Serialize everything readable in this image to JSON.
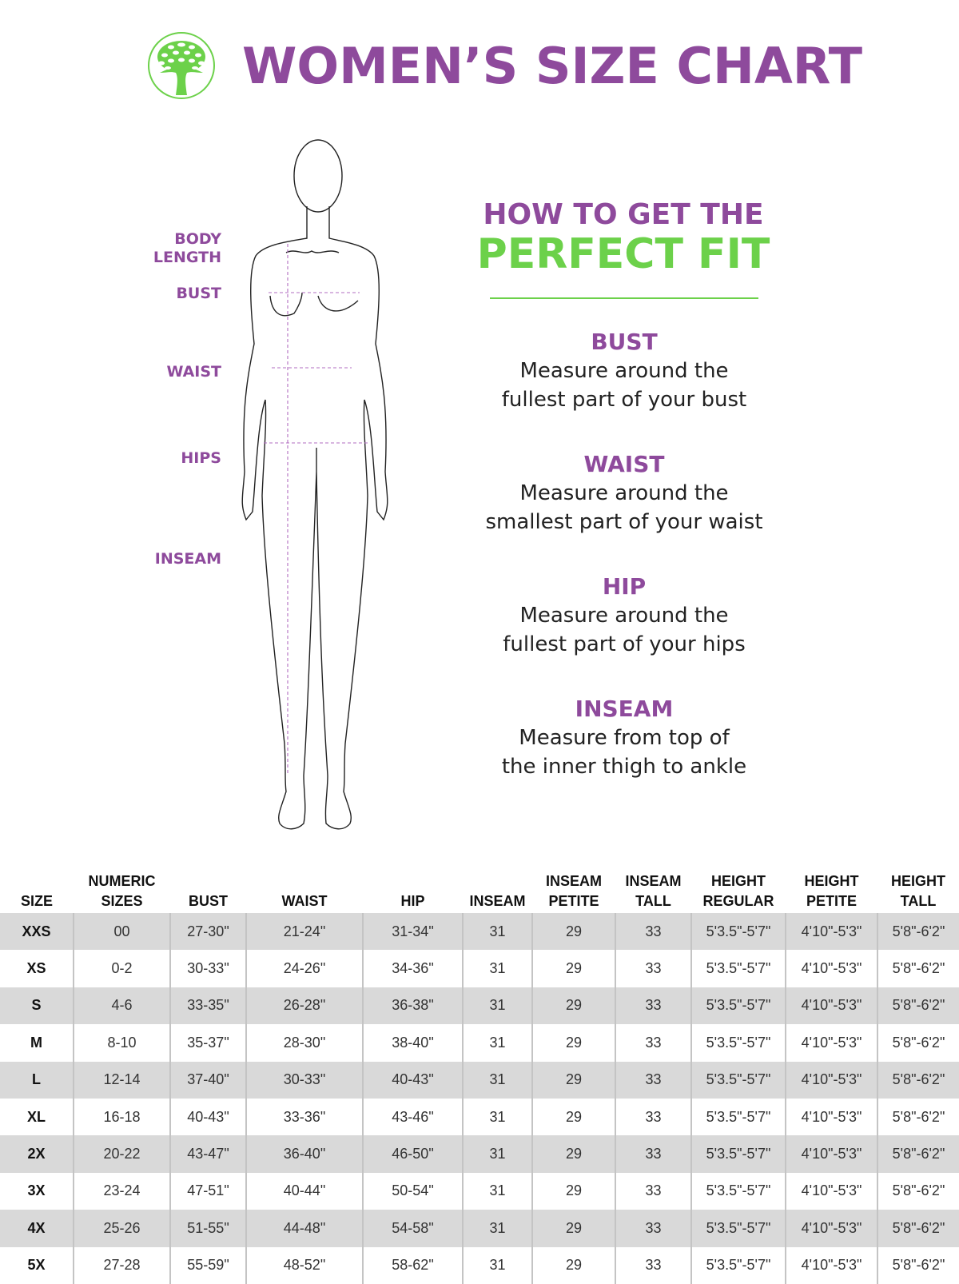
{
  "header": {
    "title": "WOMEN’S SIZE CHART",
    "logo_icon": "tree-in-circle-logo",
    "brand_green": "#6cd14a",
    "brand_purple": "#8e4a9c"
  },
  "figure_labels": {
    "body_length": [
      "BODY",
      "LENGTH"
    ],
    "bust": "BUST",
    "waist": "WAIST",
    "hips": "HIPS",
    "inseam": "INSEAM"
  },
  "howto": {
    "line1": "HOW TO GET THE",
    "line2": "PERFECT FIT",
    "sections": [
      {
        "title": "BUST",
        "desc": [
          "Measure around the",
          "fullest part of your bust"
        ]
      },
      {
        "title": "WAIST",
        "desc": [
          "Measure around the",
          "smallest part of your waist"
        ]
      },
      {
        "title": "HIP",
        "desc": [
          "Measure around the",
          "fullest part of your hips"
        ]
      },
      {
        "title": "INSEAM",
        "desc": [
          "Measure from top of",
          "the inner thigh to ankle"
        ]
      }
    ]
  },
  "table": {
    "headers": [
      [
        "SIZE"
      ],
      [
        "NUMERIC",
        "SIZES"
      ],
      [
        "BUST"
      ],
      [
        "WAIST"
      ],
      [
        "HIP"
      ],
      [
        "INSEAM"
      ],
      [
        "INSEAM",
        "PETITE"
      ],
      [
        "INSEAM",
        "TALL"
      ],
      [
        "HEIGHT",
        "REGULAR"
      ],
      [
        "HEIGHT",
        "PETITE"
      ],
      [
        "HEIGHT",
        "TALL"
      ]
    ],
    "rows": [
      [
        "XXS",
        "00",
        "27-30\"",
        "21-24\"",
        "31-34\"",
        "31",
        "29",
        "33",
        "5'3.5\"-5'7\"",
        "4'10\"-5'3\"",
        "5'8\"-6'2\""
      ],
      [
        "XS",
        "0-2",
        "30-33\"",
        "24-26\"",
        "34-36\"",
        "31",
        "29",
        "33",
        "5'3.5\"-5'7\"",
        "4'10\"-5'3\"",
        "5'8\"-6'2\""
      ],
      [
        "S",
        "4-6",
        "33-35\"",
        "26-28\"",
        "36-38\"",
        "31",
        "29",
        "33",
        "5'3.5\"-5'7\"",
        "4'10\"-5'3\"",
        "5'8\"-6'2\""
      ],
      [
        "M",
        "8-10",
        "35-37\"",
        "28-30\"",
        "38-40\"",
        "31",
        "29",
        "33",
        "5'3.5\"-5'7\"",
        "4'10\"-5'3\"",
        "5'8\"-6'2\""
      ],
      [
        "L",
        "12-14",
        "37-40\"",
        "30-33\"",
        "40-43\"",
        "31",
        "29",
        "33",
        "5'3.5\"-5'7\"",
        "4'10\"-5'3\"",
        "5'8\"-6'2\""
      ],
      [
        "XL",
        "16-18",
        "40-43\"",
        "33-36\"",
        "43-46\"",
        "31",
        "29",
        "33",
        "5'3.5\"-5'7\"",
        "4'10\"-5'3\"",
        "5'8\"-6'2\""
      ],
      [
        "2X",
        "20-22",
        "43-47\"",
        "36-40\"",
        "46-50\"",
        "31",
        "29",
        "33",
        "5'3.5\"-5'7\"",
        "4'10\"-5'3\"",
        "5'8\"-6'2\""
      ],
      [
        "3X",
        "23-24",
        "47-51\"",
        "40-44\"",
        "50-54\"",
        "31",
        "29",
        "33",
        "5'3.5\"-5'7\"",
        "4'10\"-5'3\"",
        "5'8\"-6'2\""
      ],
      [
        "4X",
        "25-26",
        "51-55\"",
        "44-48\"",
        "54-58\"",
        "31",
        "29",
        "33",
        "5'3.5\"-5'7\"",
        "4'10\"-5'3\"",
        "5'8\"-6'2\""
      ],
      [
        "5X",
        "27-28",
        "55-59\"",
        "48-52\"",
        "58-62\"",
        "31",
        "29",
        "33",
        "5'3.5\"-5'7\"",
        "4'10\"-5'3\"",
        "5'8\"-6'2\""
      ]
    ]
  }
}
